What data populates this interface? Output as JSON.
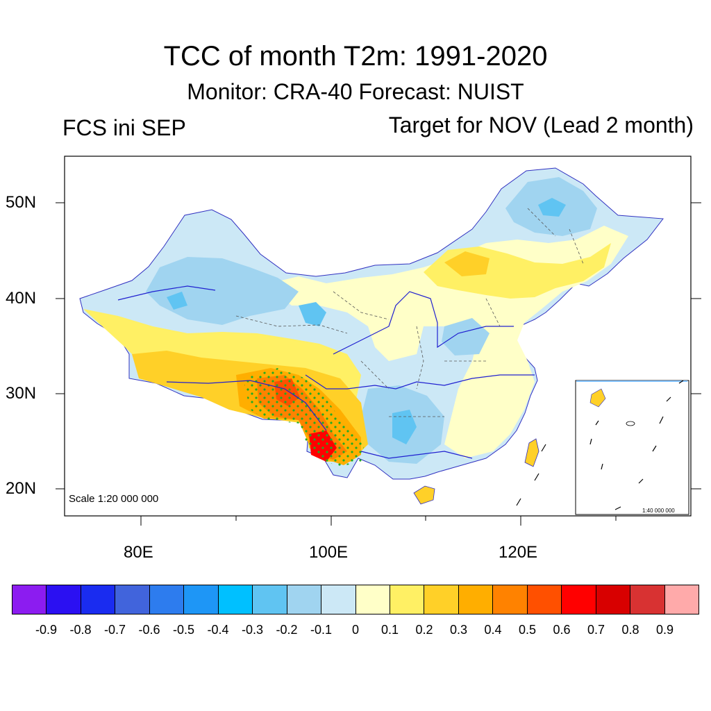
{
  "title": "TCC of month T2m: 1991-2020",
  "subtitle": "Monitor: CRA-40   Forecast: NUIST",
  "left_note": "FCS ini SEP",
  "right_note": "Target for NOV (Lead 2 month)",
  "map": {
    "lat_labels": [
      "50N",
      "40N",
      "30N",
      "20N"
    ],
    "lon_labels": [
      "80E",
      "100E",
      "120E"
    ],
    "scale_text": "Scale 1:20 000 000",
    "inset_scale_text": "1:40 000 000"
  },
  "colorbar": {
    "colors": [
      "#8c1cf0",
      "#2b10f2",
      "#1a2cf0",
      "#4164dc",
      "#2d7cee",
      "#1e96f6",
      "#00c0ff",
      "#60c4f2",
      "#a0d4f0",
      "#cce8f6",
      "#ffffc8",
      "#fff064",
      "#ffd028",
      "#ffae00",
      "#ff8200",
      "#ff5000",
      "#ff0000",
      "#d80000",
      "#d83232",
      "#ffaaaa"
    ],
    "labels": [
      "-0.9",
      "-0.8",
      "-0.7",
      "-0.6",
      "-0.5",
      "-0.4",
      "-0.3",
      "-0.2",
      "-0.1",
      "0",
      "0.1",
      "0.2",
      "0.3",
      "0.4",
      "0.5",
      "0.6",
      "0.7",
      "0.8",
      "0.9"
    ]
  }
}
